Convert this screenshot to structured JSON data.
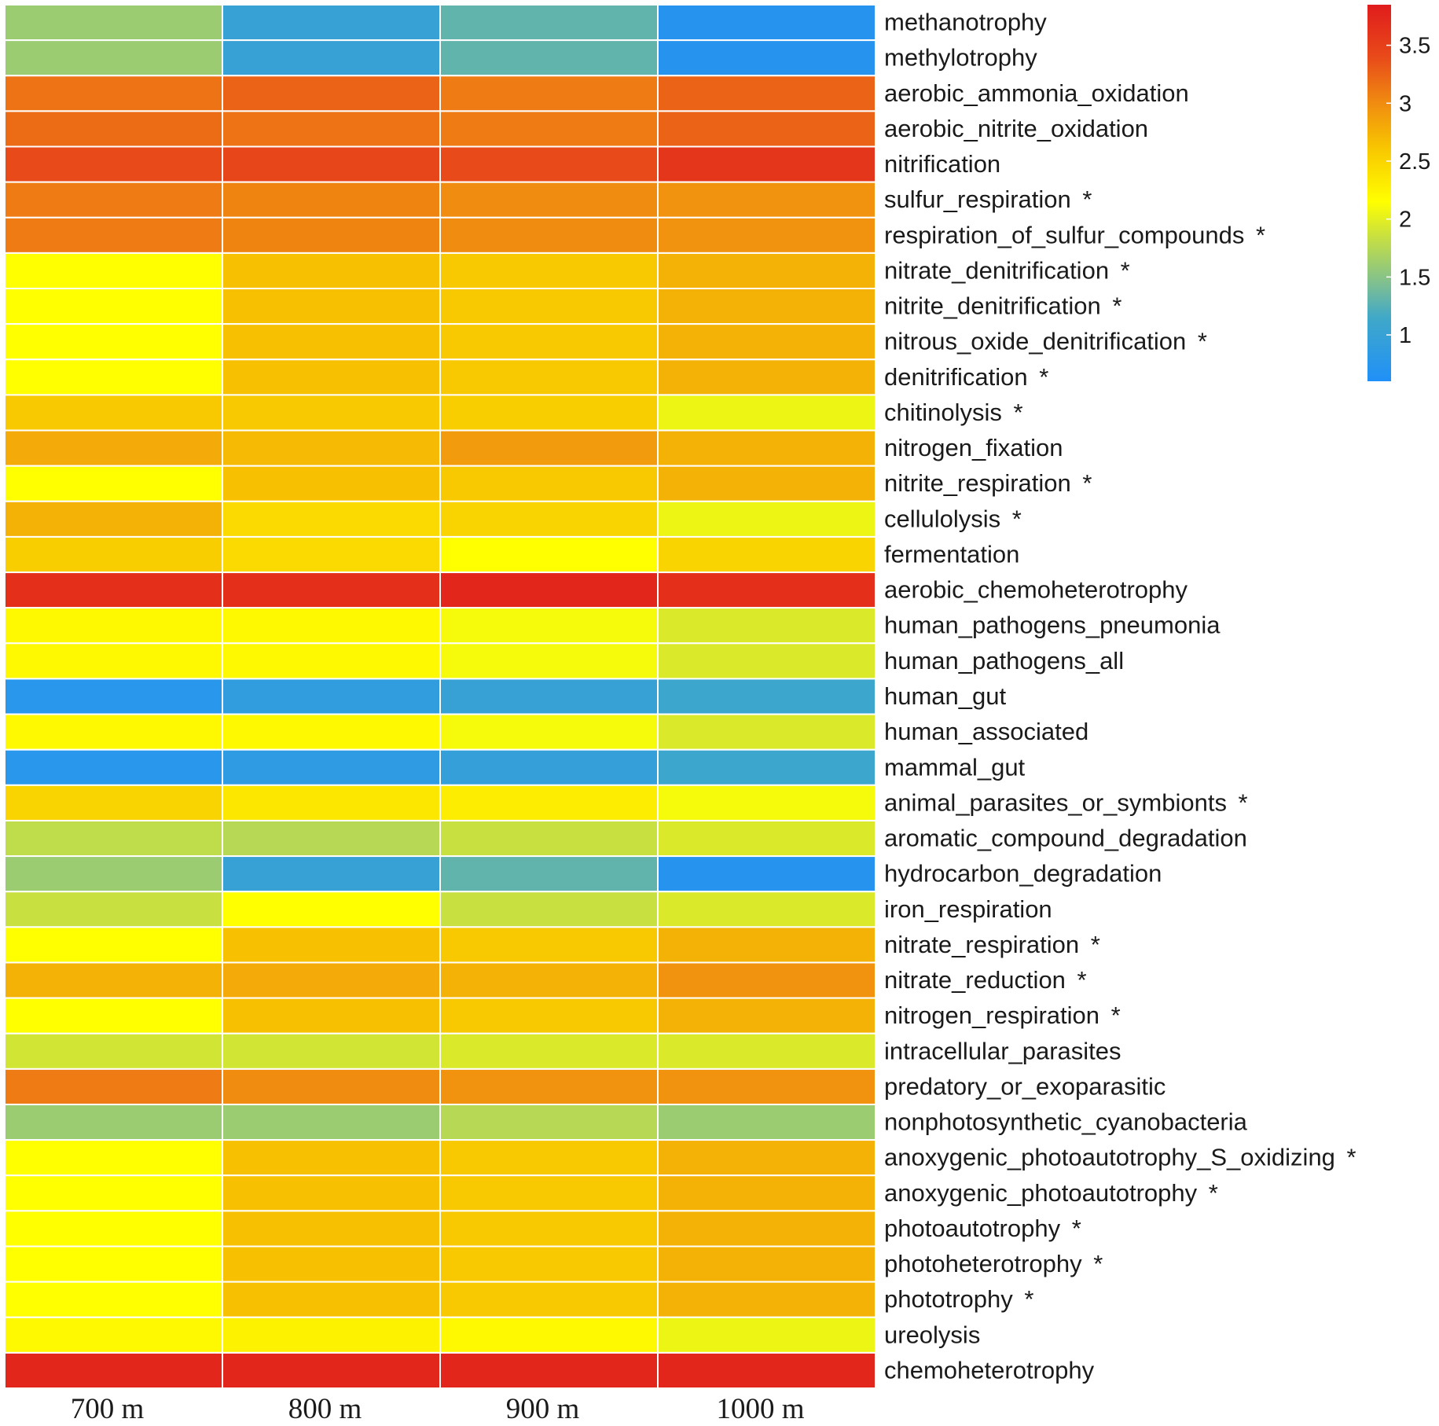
{
  "chart_data": {
    "type": "heatmap",
    "title": "",
    "columns": [
      "700 m",
      "800 m",
      "900 m",
      "1000 m"
    ],
    "rows": [
      {
        "label": "methanotrophy",
        "mark": "",
        "values": [
          1.6,
          1.0,
          1.3,
          0.7
        ]
      },
      {
        "label": "methylotrophy",
        "mark": "",
        "values": [
          1.6,
          1.0,
          1.3,
          0.7
        ]
      },
      {
        "label": "aerobic_ammonia_oxidation",
        "mark": "",
        "values": [
          3.15,
          3.25,
          3.1,
          3.25
        ]
      },
      {
        "label": "aerobic_nitrite_oxidation",
        "mark": "",
        "values": [
          3.2,
          3.15,
          3.1,
          3.25
        ]
      },
      {
        "label": "nitrification",
        "mark": "",
        "values": [
          3.4,
          3.45,
          3.4,
          3.6
        ]
      },
      {
        "label": "sulfur_respiration",
        "mark": "*",
        "values": [
          3.1,
          3.05,
          3.0,
          2.95
        ]
      },
      {
        "label": "respiration_of_sulfur_compounds",
        "mark": "*",
        "values": [
          3.1,
          3.05,
          3.0,
          2.95
        ]
      },
      {
        "label": "nitrate_denitrification",
        "mark": "*",
        "values": [
          2.15,
          2.65,
          2.6,
          2.75
        ]
      },
      {
        "label": "nitrite_denitrification",
        "mark": "*",
        "values": [
          2.15,
          2.65,
          2.6,
          2.75
        ]
      },
      {
        "label": "nitrous_oxide_denitrification",
        "mark": "*",
        "values": [
          2.15,
          2.65,
          2.6,
          2.75
        ]
      },
      {
        "label": "denitrification",
        "mark": "*",
        "values": [
          2.15,
          2.65,
          2.6,
          2.75
        ]
      },
      {
        "label": "chitinolysis",
        "mark": "*",
        "values": [
          2.6,
          2.6,
          2.55,
          2.05
        ]
      },
      {
        "label": "nitrogen_fixation",
        "mark": "",
        "values": [
          2.8,
          2.7,
          2.9,
          2.75
        ]
      },
      {
        "label": "nitrite_respiration",
        "mark": "*",
        "values": [
          2.15,
          2.65,
          2.6,
          2.75
        ]
      },
      {
        "label": "cellulolysis",
        "mark": "*",
        "values": [
          2.75,
          2.45,
          2.5,
          2.05
        ]
      },
      {
        "label": "fermentation",
        "mark": "",
        "values": [
          2.55,
          2.45,
          2.15,
          2.5
        ]
      },
      {
        "label": "aerobic_chemoheterotrophy",
        "mark": "",
        "values": [
          3.65,
          3.65,
          3.75,
          3.65
        ]
      },
      {
        "label": "human_pathogens_pneumonia",
        "mark": "",
        "values": [
          2.2,
          2.2,
          2.1,
          1.95
        ]
      },
      {
        "label": "human_pathogens_all",
        "mark": "",
        "values": [
          2.2,
          2.2,
          2.1,
          1.95
        ]
      },
      {
        "label": "human_gut",
        "mark": "",
        "values": [
          0.75,
          0.9,
          1.0,
          1.1
        ]
      },
      {
        "label": "human_associated",
        "mark": "",
        "values": [
          2.2,
          2.2,
          2.1,
          1.95
        ]
      },
      {
        "label": "mammal_gut",
        "mark": "",
        "values": [
          0.75,
          0.85,
          0.95,
          1.1
        ]
      },
      {
        "label": "animal_parasites_or_symbionts",
        "mark": "*",
        "values": [
          2.5,
          2.35,
          2.3,
          2.1
        ]
      },
      {
        "label": "aromatic_compound_degradation",
        "mark": "",
        "values": [
          1.8,
          1.75,
          1.85,
          1.95
        ]
      },
      {
        "label": "hydrocarbon_degradation",
        "mark": "",
        "values": [
          1.6,
          1.0,
          1.3,
          0.7
        ]
      },
      {
        "label": "iron_respiration",
        "mark": "",
        "values": [
          1.85,
          2.15,
          1.85,
          1.95
        ]
      },
      {
        "label": "nitrate_respiration",
        "mark": "*",
        "values": [
          2.15,
          2.65,
          2.6,
          2.75
        ]
      },
      {
        "label": "nitrate_reduction",
        "mark": "*",
        "values": [
          2.75,
          2.8,
          2.75,
          2.95
        ]
      },
      {
        "label": "nitrogen_respiration",
        "mark": "*",
        "values": [
          2.15,
          2.65,
          2.6,
          2.75
        ]
      },
      {
        "label": "intracellular_parasites",
        "mark": "",
        "values": [
          1.9,
          1.9,
          1.95,
          1.95
        ]
      },
      {
        "label": "predatory_or_exoparasitic",
        "mark": "",
        "values": [
          3.1,
          3.0,
          2.95,
          2.95
        ]
      },
      {
        "label": "nonphotosynthetic_cyanobacteria",
        "mark": "",
        "values": [
          1.6,
          1.6,
          1.75,
          1.6
        ]
      },
      {
        "label": "anoxygenic_photoautotrophy_S_oxidizing",
        "mark": "*",
        "values": [
          2.15,
          2.65,
          2.6,
          2.75
        ]
      },
      {
        "label": "anoxygenic_photoautotrophy",
        "mark": "*",
        "values": [
          2.15,
          2.65,
          2.6,
          2.75
        ]
      },
      {
        "label": "photoautotrophy",
        "mark": "*",
        "values": [
          2.15,
          2.65,
          2.6,
          2.75
        ]
      },
      {
        "label": "photoheterotrophy",
        "mark": "*",
        "values": [
          2.15,
          2.65,
          2.6,
          2.75
        ]
      },
      {
        "label": "phototrophy",
        "mark": "*",
        "values": [
          2.15,
          2.65,
          2.6,
          2.75
        ]
      },
      {
        "label": "ureolysis",
        "mark": "",
        "values": [
          2.2,
          2.25,
          2.2,
          2.05
        ]
      },
      {
        "label": "chemoheterotrophy",
        "mark": "",
        "values": [
          3.75,
          3.75,
          3.75,
          3.75
        ]
      }
    ],
    "color_scale": {
      "min": 0.6,
      "max": 3.85,
      "ticks": [
        1,
        1.5,
        2,
        2.5,
        3,
        3.5
      ],
      "tick_labels": [
        "1",
        "1.5",
        "2",
        "2.5",
        "3",
        "3.5"
      ],
      "stops": [
        {
          "value": 0.6,
          "color": "#2090f8"
        },
        {
          "value": 1.15,
          "color": "#40a8c8"
        },
        {
          "value": 1.45,
          "color": "#80c090"
        },
        {
          "value": 1.85,
          "color": "#c8e040"
        },
        {
          "value": 2.15,
          "color": "#ffff00"
        },
        {
          "value": 2.6,
          "color": "#f8c800"
        },
        {
          "value": 3.0,
          "color": "#f08c10"
        },
        {
          "value": 3.4,
          "color": "#e84a1a"
        },
        {
          "value": 3.85,
          "color": "#e01c1c"
        }
      ]
    },
    "legend_position": "top-right",
    "cell_border_color": "#ffffff"
  }
}
